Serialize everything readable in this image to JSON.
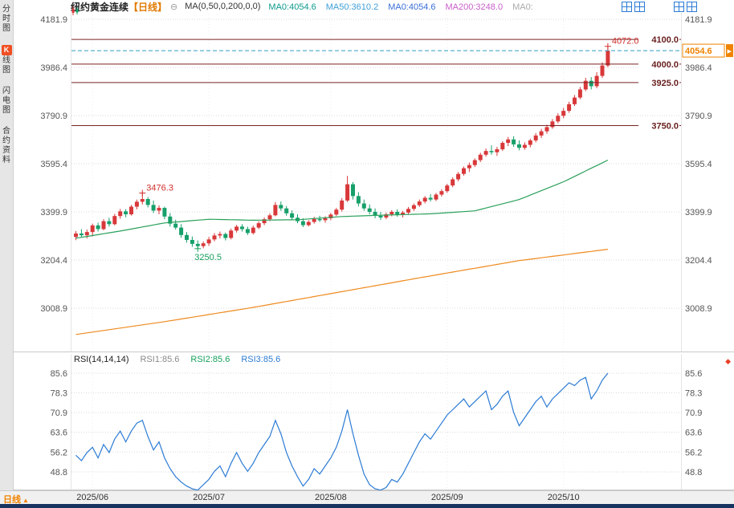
{
  "app": {
    "sidebar": {
      "tabs": [
        {
          "key": "time-chart",
          "label": "分时图"
        },
        {
          "key": "kline-chart",
          "label": "K线图",
          "active": true
        },
        {
          "key": "flash-chart",
          "label": "闪电图"
        },
        {
          "key": "contract-info",
          "label": "合约资料"
        }
      ]
    },
    "header": {
      "title": "纽约黄金连续",
      "period_tag": "【日线】",
      "collapse_icon": "⊖",
      "ma_formula": "MA(0,50,0,200,0,0)",
      "ma_labels": [
        {
          "text": "MA0:4054.6",
          "color": "#0e9a8e"
        },
        {
          "text": "MA50:3610.2",
          "color": "#3f9fd8"
        },
        {
          "text": "MA0:4054.6",
          "color": "#3a6fd8"
        },
        {
          "text": "MA200:3248.0",
          "color": "#c95fc9"
        },
        {
          "text": "MA0:",
          "color": "#aaaaaa"
        }
      ],
      "layout_icons": [
        "grid-4",
        "grid-2h",
        "grid-2v",
        "grid-1"
      ]
    },
    "rsi_header": {
      "formula": "RSI(14,14,14)",
      "marker": "◆",
      "items": [
        {
          "text": "RSI1:85.6",
          "color": "#8a8a8a"
        },
        {
          "text": "RSI2:85.6",
          "color": "#18a05c"
        },
        {
          "text": "RSI3:85.6",
          "color": "#2b7bd4"
        }
      ]
    },
    "footer": {
      "period_label": "日线",
      "period_arrow": "▲"
    }
  },
  "chart_data": {
    "type": "candlestick",
    "title": "纽约黄金连续 日线",
    "price_ticks": [
      4181.9,
      3986.4,
      3790.9,
      3595.4,
      3399.9,
      3204.4,
      3008.9
    ],
    "rsi_ticks": [
      85.6,
      78.3,
      70.9,
      63.6,
      56.2,
      48.8
    ],
    "level_lines": [
      4100.0,
      4000.0,
      3925.0,
      3750.0
    ],
    "last_price": 4054.6,
    "months": [
      {
        "label": "2025/06",
        "idx": 3
      },
      {
        "label": "2025/07",
        "idx": 24
      },
      {
        "label": "2025/08",
        "idx": 46
      },
      {
        "label": "2025/09",
        "idx": 67
      },
      {
        "label": "2025/10",
        "idx": 88
      }
    ],
    "annotations": [
      {
        "idx": 12,
        "price": 3476.3,
        "label": "3476.3",
        "pos": "above",
        "color": "#d0302e"
      },
      {
        "idx": 22,
        "price": 3250.5,
        "label": "3250.5",
        "pos": "below",
        "color": "#18a05c"
      },
      {
        "idx": 96,
        "price": 4072.0,
        "label": "4072.0",
        "pos": "above",
        "color": "#d0302e"
      }
    ],
    "ma50_points": [
      [
        0,
        3293
      ],
      [
        8,
        3322
      ],
      [
        16,
        3355
      ],
      [
        24,
        3370
      ],
      [
        32,
        3366
      ],
      [
        40,
        3368
      ],
      [
        48,
        3381
      ],
      [
        56,
        3387
      ],
      [
        64,
        3392
      ],
      [
        72,
        3404
      ],
      [
        80,
        3450
      ],
      [
        88,
        3522
      ],
      [
        96,
        3610
      ]
    ],
    "ma200_points": [
      [
        0,
        2902
      ],
      [
        16,
        2954
      ],
      [
        32,
        3012
      ],
      [
        48,
        3076
      ],
      [
        64,
        3140
      ],
      [
        80,
        3202
      ],
      [
        96,
        3248
      ]
    ],
    "candles": [
      [
        3298,
        3322,
        3285,
        3312
      ],
      [
        3312,
        3330,
        3295,
        3305
      ],
      [
        3305,
        3328,
        3292,
        3318
      ],
      [
        3318,
        3352,
        3300,
        3345
      ],
      [
        3345,
        3356,
        3320,
        3330
      ],
      [
        3330,
        3370,
        3325,
        3362
      ],
      [
        3362,
        3376,
        3340,
        3350
      ],
      [
        3350,
        3392,
        3345,
        3383
      ],
      [
        3383,
        3412,
        3372,
        3402
      ],
      [
        3402,
        3411,
        3378,
        3390
      ],
      [
        3390,
        3428,
        3385,
        3421
      ],
      [
        3421,
        3450,
        3410,
        3441
      ],
      [
        3441,
        3476.3,
        3430,
        3452
      ],
      [
        3452,
        3460,
        3418,
        3428
      ],
      [
        3428,
        3446,
        3395,
        3405
      ],
      [
        3405,
        3426,
        3390,
        3416
      ],
      [
        3416,
        3421,
        3370,
        3381
      ],
      [
        3381,
        3395,
        3340,
        3352
      ],
      [
        3352,
        3368,
        3328,
        3336
      ],
      [
        3336,
        3350,
        3295,
        3306
      ],
      [
        3306,
        3318,
        3275,
        3286
      ],
      [
        3286,
        3300,
        3258,
        3270
      ],
      [
        3270,
        3284,
        3250.5,
        3261
      ],
      [
        3261,
        3280,
        3252,
        3272
      ],
      [
        3272,
        3298,
        3262,
        3288
      ],
      [
        3288,
        3314,
        3280,
        3304
      ],
      [
        3304,
        3320,
        3292,
        3310
      ],
      [
        3310,
        3316,
        3284,
        3294
      ],
      [
        3294,
        3332,
        3288,
        3324
      ],
      [
        3324,
        3347,
        3316,
        3340
      ],
      [
        3340,
        3350,
        3320,
        3330
      ],
      [
        3330,
        3340,
        3306,
        3314
      ],
      [
        3314,
        3344,
        3308,
        3336
      ],
      [
        3336,
        3362,
        3330,
        3354
      ],
      [
        3354,
        3377,
        3346,
        3370
      ],
      [
        3370,
        3394,
        3362,
        3386
      ],
      [
        3386,
        3440,
        3382,
        3428
      ],
      [
        3428,
        3442,
        3404,
        3414
      ],
      [
        3414,
        3424,
        3384,
        3394
      ],
      [
        3394,
        3406,
        3366,
        3376
      ],
      [
        3376,
        3390,
        3354,
        3362
      ],
      [
        3362,
        3374,
        3338,
        3346
      ],
      [
        3346,
        3366,
        3341,
        3359
      ],
      [
        3359,
        3380,
        3352,
        3371
      ],
      [
        3371,
        3384,
        3359,
        3366
      ],
      [
        3366,
        3382,
        3356,
        3374
      ],
      [
        3374,
        3396,
        3366,
        3389
      ],
      [
        3389,
        3416,
        3383,
        3409
      ],
      [
        3409,
        3456,
        3401,
        3446
      ],
      [
        3446,
        3546,
        3440,
        3512
      ],
      [
        3512,
        3521,
        3450,
        3464
      ],
      [
        3464,
        3480,
        3422,
        3434
      ],
      [
        3434,
        3450,
        3404,
        3414
      ],
      [
        3414,
        3430,
        3390,
        3400
      ],
      [
        3400,
        3414,
        3374,
        3384
      ],
      [
        3384,
        3400,
        3367,
        3377
      ],
      [
        3377,
        3397,
        3370,
        3390
      ],
      [
        3390,
        3407,
        3382,
        3400
      ],
      [
        3400,
        3410,
        3380,
        3388
      ],
      [
        3388,
        3404,
        3377,
        3397
      ],
      [
        3397,
        3420,
        3390,
        3412
      ],
      [
        3412,
        3434,
        3404,
        3427
      ],
      [
        3427,
        3450,
        3420,
        3442
      ],
      [
        3442,
        3464,
        3434,
        3457
      ],
      [
        3457,
        3472,
        3442,
        3450
      ],
      [
        3450,
        3477,
        3444,
        3470
      ],
      [
        3470,
        3492,
        3462,
        3484
      ],
      [
        3484,
        3514,
        3477,
        3507
      ],
      [
        3507,
        3540,
        3500,
        3532
      ],
      [
        3532,
        3562,
        3524,
        3554
      ],
      [
        3554,
        3584,
        3547,
        3577
      ],
      [
        3577,
        3600,
        3562,
        3590
      ],
      [
        3590,
        3617,
        3582,
        3610
      ],
      [
        3610,
        3640,
        3602,
        3632
      ],
      [
        3632,
        3657,
        3624,
        3647
      ],
      [
        3647,
        3670,
        3632,
        3642
      ],
      [
        3642,
        3664,
        3627,
        3654
      ],
      [
        3654,
        3687,
        3647,
        3680
      ],
      [
        3680,
        3704,
        3667,
        3694
      ],
      [
        3694,
        3707,
        3664,
        3674
      ],
      [
        3674,
        3690,
        3650,
        3660
      ],
      [
        3660,
        3682,
        3652,
        3672
      ],
      [
        3672,
        3697,
        3662,
        3690
      ],
      [
        3690,
        3720,
        3682,
        3710
      ],
      [
        3710,
        3737,
        3700,
        3727
      ],
      [
        3727,
        3754,
        3717,
        3744
      ],
      [
        3744,
        3777,
        3737,
        3767
      ],
      [
        3767,
        3800,
        3760,
        3790
      ],
      [
        3790,
        3822,
        3780,
        3810
      ],
      [
        3810,
        3847,
        3802,
        3837
      ],
      [
        3837,
        3874,
        3830,
        3864
      ],
      [
        3864,
        3907,
        3857,
        3897
      ],
      [
        3897,
        3944,
        3890,
        3932
      ],
      [
        3932,
        3947,
        3897,
        3910
      ],
      [
        3910,
        3967,
        3902,
        3952
      ],
      [
        3952,
        4007,
        3944,
        3994
      ],
      [
        3994,
        4072,
        3987,
        4054.6
      ]
    ],
    "rsi": [
      55,
      53,
      56,
      58,
      54,
      59,
      56,
      61,
      64,
      60,
      64,
      67,
      68,
      62,
      57,
      60,
      54,
      50,
      47,
      45,
      43.5,
      42.5,
      42,
      44,
      46,
      49,
      51,
      47,
      52,
      56,
      52,
      49,
      52,
      56,
      59,
      62,
      68,
      63,
      56,
      51,
      47,
      43.5,
      46,
      50,
      48,
      51,
      54,
      58,
      64,
      72,
      63,
      55,
      48,
      44,
      42.5,
      42,
      43,
      46,
      45,
      48,
      52,
      56,
      60,
      63,
      61,
      64,
      67,
      70,
      72,
      74,
      76,
      73,
      75,
      77,
      79,
      72,
      74,
      77,
      79,
      71,
      66,
      69,
      72,
      75,
      77,
      73,
      76,
      78,
      80,
      82,
      81,
      83,
      84,
      76,
      79,
      83,
      85.6
    ],
    "palette": {
      "up": "#d8383a",
      "down": "#17a06a",
      "ma_fast": "#2aa05a",
      "ma_slow": "#ef8a1e",
      "rsi_line": "#2b7bd4",
      "last_price_line": "#2f9ec4",
      "last_price_text": "#f08300",
      "level_line": "#7b2323",
      "level_text": "#6a2020",
      "grid": "#d9d9d9",
      "axis_text": "#555555"
    }
  }
}
